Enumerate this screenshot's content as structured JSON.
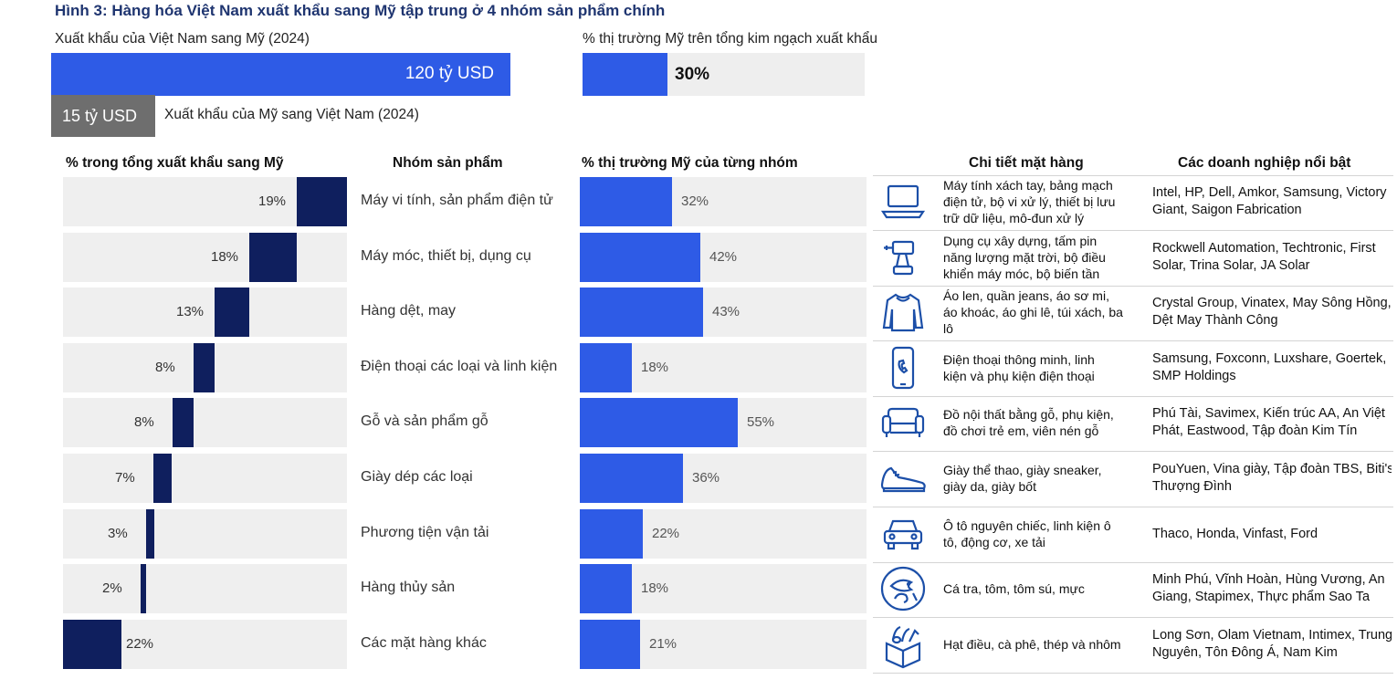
{
  "title": "Hình 3: Hàng hóa Việt Nam xuất khẩu sang Mỹ tập trung ở 4 nhóm sản phẩm chính",
  "exports": {
    "vn_to_us_label": "Xuất khẩu của Việt Nam sang Mỹ (2024)",
    "vn_to_us_value": "120 tỷ USD",
    "us_to_vn_value": "15 tỷ USD",
    "us_to_vn_label": "Xuất khẩu của Mỹ sang Việt Nam (2024)"
  },
  "us_share": {
    "label": "% thị trường Mỹ trên tổng kim ngạch xuất khẩu",
    "value": "30%",
    "fraction": 0.3
  },
  "headers": {
    "left": "% trong tổng xuất khẩu sang Mỹ",
    "category": "Nhóm sản phẩm",
    "mid": "% thị trường Mỹ của từng nhóm",
    "detail": "Chi tiết mặt hàng",
    "firms": "Các doanh nghiệp nổi bật"
  },
  "chart_data": {
    "type": "bar",
    "title": "Hình 3: Hàng hóa Việt Nam xuất khẩu sang Mỹ tập trung ở 4 nhóm sản phẩm chính",
    "categories": [
      "Máy vi tính, sản phẩm điện tử",
      "Máy móc, thiết bị, dụng cụ",
      "Hàng dệt, may",
      "Điện thoại các loại và linh kiện",
      "Gỗ và sản phẩm gỗ",
      "Giày dép các loại",
      "Phương tiện vận tải",
      "Hàng thủy sản",
      "Các mặt hàng khác"
    ],
    "series": [
      {
        "name": "% trong tổng xuất khẩu sang Mỹ",
        "values": [
          19,
          18,
          13,
          8,
          8,
          7,
          3,
          2,
          22
        ],
        "labels": [
          "19%",
          "18%",
          "13%",
          "8%",
          "8%",
          "7%",
          "3%",
          "2%",
          "22%"
        ]
      },
      {
        "name": "% thị trường Mỹ của từng nhóm",
        "values": [
          32,
          42,
          43,
          18,
          55,
          36,
          22,
          18,
          21
        ],
        "labels": [
          "32%",
          "42%",
          "43%",
          "18%",
          "55%",
          "36%",
          "22%",
          "18%",
          "21%"
        ]
      }
    ],
    "ylim": [
      0,
      100
    ]
  },
  "rows": [
    {
      "icon": "laptop-icon",
      "detail": [
        "Máy tính xách tay, bảng mạch",
        "điện tử, bộ vi xử lý, thiết bị lưu",
        "trữ dữ liệu, mô-đun xử lý"
      ],
      "firms": [
        "Intel, HP, Dell, Amkor, Samsung, Victory",
        "Giant, Saigon Fabrication"
      ]
    },
    {
      "icon": "drill-icon",
      "detail": [
        "Dụng cụ xây dựng, tấm pin",
        "năng lượng mặt trời, bộ điều",
        "khiển máy móc, bộ biến tần"
      ],
      "firms": [
        "Rockwell Automation, Techtronic, First",
        "Solar, Trina Solar, JA Solar"
      ]
    },
    {
      "icon": "sweater-icon",
      "detail": [
        "Áo len, quần jeans, áo sơ mi,",
        "áo khoác, áo ghi lê, túi xách, ba",
        "lô"
      ],
      "firms": [
        "Crystal Group, Vinatex, May Sông Hồng,",
        "Dệt May Thành Công"
      ]
    },
    {
      "icon": "smartphone-icon",
      "detail": [
        "Điện thoại thông minh, linh",
        "kiện và phụ kiện điện thoại"
      ],
      "firms": [
        "Samsung, Foxconn, Luxshare, Goertek,",
        "SMP Holdings"
      ]
    },
    {
      "icon": "sofa-icon",
      "detail": [
        "Đồ nội thất bằng gỗ, phụ kiện,",
        "đồ chơi trẻ em, viên nén gỗ"
      ],
      "firms": [
        "Phú Tài, Savimex, Kiến trúc AA, An Việt",
        "Phát, Eastwood, Tập đoàn Kim Tín"
      ]
    },
    {
      "icon": "sneaker-icon",
      "detail": [
        "Giày thể thao, giày sneaker,",
        "giày da, giày bốt"
      ],
      "firms": [
        "PouYuen, Vina giày, Tập đoàn TBS, Biti's",
        "Thượng Đình"
      ]
    },
    {
      "icon": "car-icon",
      "detail": [
        "Ô tô nguyên chiếc, linh kiện ô",
        "tô, động cơ, xe tải"
      ],
      "firms": [
        "Thaco, Honda, Vinfast, Ford"
      ]
    },
    {
      "icon": "seafood-icon",
      "detail": [
        "Cá tra, tôm, tôm sú, mực"
      ],
      "firms": [
        "Minh Phú, Vĩnh Hoàn, Hùng Vương, An",
        "Giang, Stapimex, Thực phẩm Sao Ta"
      ]
    },
    {
      "icon": "goods-box-icon",
      "detail": [
        "Hạt điều, cà phê, thép và nhôm"
      ],
      "firms": [
        "Long Sơn, Olam Vietnam, Intimex, Trung",
        "Nguyên, Tôn Đông Á, Nam Kim"
      ]
    }
  ],
  "colors": {
    "title": "#1f3570",
    "primary_blue": "#2e5be6",
    "navy": "#0f1f5e",
    "gray_bar": "#6e6e6e",
    "row_bg": "#efefef"
  }
}
